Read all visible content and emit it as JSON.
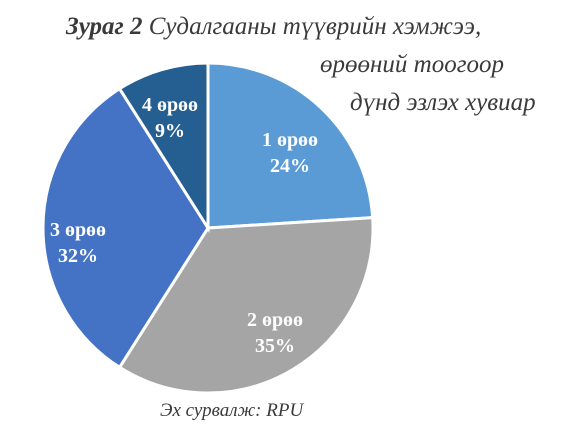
{
  "chart_data": {
    "type": "pie",
    "title_prefix": "Зураг 2",
    "title_lines": [
      "Судалгааны түүврийн хэмжээ,",
      "өрөөний тоогоор",
      "дүнд эзлэх хувиар"
    ],
    "source": "Эх сурвалж: RPU",
    "slices": [
      {
        "label": "1 өрөө",
        "value": 24,
        "value_label": "24%",
        "color": "#5b9bd5"
      },
      {
        "label": "2 өрөө",
        "value": 35,
        "value_label": "35%",
        "color": "#a5a5a5"
      },
      {
        "label": "3 өрөө",
        "value": 32,
        "value_label": "32%",
        "color": "#4472c4"
      },
      {
        "label": "4 өрөө",
        "value": 9,
        "value_label": "9%",
        "color": "#255e91"
      }
    ],
    "start_angle_deg": 0,
    "direction": "clockwise"
  }
}
